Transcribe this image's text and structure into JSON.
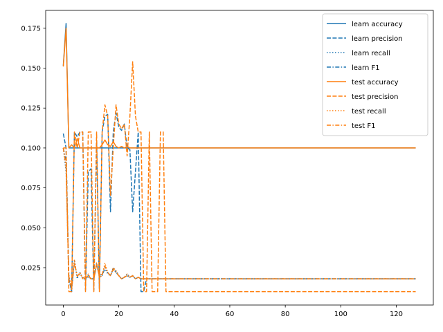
{
  "chart_data": {
    "type": "line",
    "title": "",
    "xlabel": "",
    "ylabel": "",
    "xlim": [
      -6.35,
      133.35
    ],
    "ylim": [
      0.0016,
      0.1862
    ],
    "xticks": [
      0,
      20,
      40,
      60,
      80,
      100,
      120
    ],
    "yticks": [
      0.025,
      0.05,
      0.075,
      0.1,
      0.125,
      0.15,
      0.175
    ],
    "ytick_labels": [
      "0.025",
      "0.050",
      "0.075",
      "0.100",
      "0.125",
      "0.150",
      "0.175"
    ],
    "grid": false,
    "legend_position": "top-right",
    "series": [
      {
        "name": "learn accuracy",
        "color": "#1f77b4",
        "style": "solid",
        "x": [
          0,
          1,
          2,
          3,
          4,
          5,
          6,
          7,
          8,
          9,
          10,
          11,
          12,
          13,
          14,
          15,
          16,
          17,
          18,
          19,
          20,
          22,
          24,
          27,
          30,
          40,
          60,
          80,
          100,
          127
        ],
        "y": [
          0.1515,
          0.178,
          0.1,
          0.1,
          0.1,
          0.1,
          0.1,
          0.1,
          0.1,
          0.1,
          0.1,
          0.1,
          0.1,
          0.1,
          0.1,
          0.1,
          0.1,
          0.1,
          0.1,
          0.1,
          0.1,
          0.1,
          0.1,
          0.1,
          0.1,
          0.1,
          0.1,
          0.1,
          0.1,
          0.1
        ]
      },
      {
        "name": "learn precision",
        "color": "#1f77b4",
        "style": "dashed",
        "x": [
          0,
          1,
          2,
          3,
          4,
          5,
          6,
          7,
          8,
          9,
          10,
          11,
          12,
          13,
          14,
          15,
          16,
          17,
          18,
          19,
          20,
          21,
          22,
          23,
          24,
          25,
          26,
          27,
          28,
          29,
          30,
          40,
          60,
          80,
          100,
          127
        ],
        "y": [
          0.109,
          0.1,
          0.018,
          0.01,
          0.11,
          0.107,
          0.11,
          0.11,
          0.011,
          0.085,
          0.087,
          0.011,
          0.104,
          0.012,
          0.11,
          0.12,
          0.121,
          0.06,
          0.11,
          0.122,
          0.113,
          0.111,
          0.115,
          0.1,
          0.099,
          0.06,
          0.085,
          0.11,
          0.01,
          0.01,
          0.018,
          0.018,
          0.018,
          0.018,
          0.018,
          0.018
        ]
      },
      {
        "name": "learn recall",
        "color": "#1f77b4",
        "style": "dotted",
        "x": [
          0,
          1,
          2,
          3,
          4,
          5,
          6,
          7,
          8,
          9,
          10,
          11,
          12,
          13,
          14,
          15,
          16,
          17,
          18,
          19,
          20,
          21,
          22,
          23,
          24,
          25,
          26,
          27,
          28,
          30,
          40,
          60,
          80,
          100,
          127
        ],
        "y": [
          0.1,
          0.085,
          0.02,
          0.01,
          0.03,
          0.018,
          0.022,
          0.018,
          0.018,
          0.02,
          0.018,
          0.018,
          0.028,
          0.019,
          0.02,
          0.025,
          0.021,
          0.02,
          0.025,
          0.023,
          0.02,
          0.018,
          0.019,
          0.021,
          0.019,
          0.02,
          0.018,
          0.019,
          0.018,
          0.018,
          0.018,
          0.018,
          0.018,
          0.018,
          0.018
        ]
      },
      {
        "name": "learn F1",
        "color": "#1f77b4",
        "style": "dashdot",
        "x": [
          0,
          1,
          2,
          3,
          4,
          5,
          6,
          7,
          8,
          9,
          10,
          11,
          12,
          13,
          14,
          15,
          16,
          17,
          18,
          19,
          20,
          21,
          22,
          23,
          24,
          25,
          26,
          27,
          28,
          30,
          40,
          60,
          80,
          100,
          127
        ],
        "y": [
          0.1,
          0.092,
          0.018,
          0.012,
          0.028,
          0.02,
          0.021,
          0.019,
          0.018,
          0.019,
          0.018,
          0.018,
          0.027,
          0.02,
          0.021,
          0.024,
          0.022,
          0.02,
          0.024,
          0.022,
          0.02,
          0.018,
          0.019,
          0.02,
          0.019,
          0.02,
          0.018,
          0.019,
          0.018,
          0.018,
          0.018,
          0.018,
          0.018,
          0.018,
          0.018
        ]
      },
      {
        "name": "test accuracy",
        "color": "#ff7f0e",
        "style": "solid",
        "x": [
          0,
          1,
          2,
          3,
          4,
          5,
          6,
          7,
          8,
          9,
          10,
          11,
          12,
          13,
          14,
          15,
          16,
          17,
          18,
          19,
          20,
          21,
          22,
          23,
          24,
          25,
          26,
          27,
          28,
          30,
          40,
          60,
          80,
          100,
          127
        ],
        "y": [
          0.151,
          0.175,
          0.1,
          0.102,
          0.1,
          0.106,
          0.1,
          0.1,
          0.1,
          0.1,
          0.1,
          0.1,
          0.1,
          0.1,
          0.102,
          0.105,
          0.102,
          0.101,
          0.104,
          0.101,
          0.1,
          0.101,
          0.1,
          0.101,
          0.1,
          0.1,
          0.1,
          0.1,
          0.1,
          0.1,
          0.1,
          0.1,
          0.1,
          0.1,
          0.1
        ]
      },
      {
        "name": "test precision",
        "color": "#ff7f0e",
        "style": "dashed",
        "x": [
          0,
          1,
          2,
          3,
          4,
          5,
          6,
          7,
          8,
          9,
          10,
          11,
          12,
          13,
          14,
          15,
          16,
          17,
          18,
          19,
          20,
          21,
          22,
          23,
          24,
          25,
          26,
          27,
          28,
          29,
          30,
          31,
          32,
          33,
          34,
          35,
          36,
          37,
          38,
          40,
          60,
          80,
          100,
          127
        ],
        "y": [
          0.1,
          0.1,
          0.01,
          0.01,
          0.11,
          0.1,
          0.11,
          0.11,
          0.01,
          0.11,
          0.11,
          0.01,
          0.11,
          0.01,
          0.11,
          0.127,
          0.12,
          0.07,
          0.1,
          0.127,
          0.115,
          0.112,
          0.115,
          0.095,
          0.12,
          0.154,
          0.12,
          0.11,
          0.11,
          0.01,
          0.01,
          0.11,
          0.01,
          0.01,
          0.01,
          0.11,
          0.11,
          0.01,
          0.01,
          0.01,
          0.01,
          0.01,
          0.01,
          0.01
        ]
      },
      {
        "name": "test recall",
        "color": "#ff7f0e",
        "style": "dotted",
        "x": [
          0,
          1,
          2,
          3,
          4,
          5,
          6,
          7,
          8,
          9,
          10,
          11,
          12,
          13,
          14,
          15,
          16,
          17,
          18,
          19,
          20,
          21,
          22,
          23,
          24,
          25,
          26,
          27,
          28,
          30,
          40,
          60,
          80,
          100,
          127
        ],
        "y": [
          0.1,
          0.09,
          0.02,
          0.012,
          0.03,
          0.019,
          0.022,
          0.018,
          0.018,
          0.021,
          0.018,
          0.018,
          0.028,
          0.019,
          0.02,
          0.028,
          0.022,
          0.02,
          0.025,
          0.023,
          0.02,
          0.018,
          0.019,
          0.021,
          0.019,
          0.02,
          0.018,
          0.019,
          0.018,
          0.018,
          0.018,
          0.018,
          0.018,
          0.018,
          0.018
        ]
      },
      {
        "name": "test F1",
        "color": "#ff7f0e",
        "style": "dashdot",
        "x": [
          0,
          1,
          2,
          3,
          4,
          5,
          6,
          7,
          8,
          9,
          10,
          11,
          12,
          13,
          14,
          15,
          16,
          17,
          18,
          19,
          20,
          21,
          22,
          23,
          24,
          25,
          26,
          27,
          28,
          30,
          40,
          60,
          80,
          100,
          127
        ],
        "y": [
          0.1,
          0.088,
          0.019,
          0.012,
          0.028,
          0.02,
          0.021,
          0.019,
          0.018,
          0.02,
          0.018,
          0.018,
          0.027,
          0.02,
          0.021,
          0.026,
          0.022,
          0.02,
          0.024,
          0.022,
          0.02,
          0.018,
          0.019,
          0.02,
          0.019,
          0.02,
          0.018,
          0.019,
          0.018,
          0.018,
          0.018,
          0.018,
          0.018,
          0.018,
          0.018
        ]
      }
    ]
  }
}
